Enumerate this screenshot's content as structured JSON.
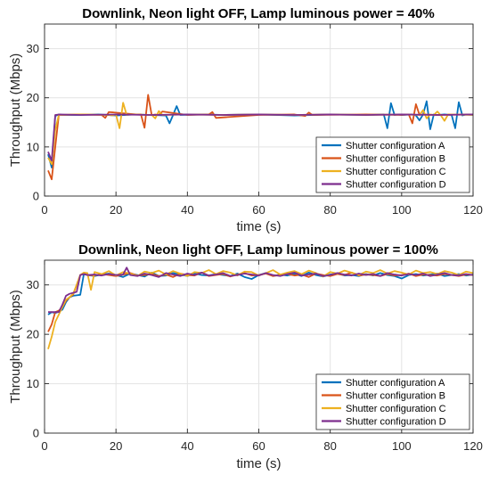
{
  "colors": {
    "A": "#0072BD",
    "B": "#D95319",
    "C": "#EDB120",
    "D": "#7E2F8E",
    "grid": "#e3e3e3",
    "axis": "#262626"
  },
  "chart_data": [
    {
      "type": "line",
      "title": "Downlink, Neon light OFF, Lamp luminous power =  40%",
      "xlabel": "time (s)",
      "ylabel": "Throughput (Mbps)",
      "xlim": [
        0,
        120
      ],
      "ylim": [
        0,
        35
      ],
      "xticks": [
        0,
        20,
        40,
        60,
        80,
        100,
        120
      ],
      "yticks": [
        0,
        10,
        20,
        30
      ],
      "grid": true,
      "legend_position": "bottom-right",
      "series": [
        {
          "name": "Shutter configuration  A",
          "color_key": "A",
          "x": [
            1,
            2,
            3,
            4,
            5,
            10,
            15,
            20,
            25,
            30,
            34,
            35,
            36,
            37,
            38,
            45,
            50,
            60,
            70,
            80,
            90,
            95,
            96,
            97,
            98,
            99,
            100,
            103,
            104,
            105,
            106,
            107,
            108,
            109,
            110,
            112,
            114,
            115,
            116,
            117,
            118,
            120
          ],
          "y": [
            8.5,
            5.8,
            16.3,
            16.6,
            16.5,
            16.5,
            16.6,
            16.4,
            16.6,
            16.5,
            16.4,
            14.8,
            16.5,
            18.3,
            16.5,
            16.6,
            16.5,
            16.6,
            16.4,
            16.6,
            16.5,
            16.6,
            13.8,
            18.9,
            16.5,
            16.6,
            16.5,
            16.6,
            16.4,
            15.4,
            16.6,
            19.3,
            13.6,
            16.6,
            16.5,
            16.6,
            16.5,
            13.8,
            19.1,
            16.4,
            16.6,
            16.5
          ]
        },
        {
          "name": "Shutter configuration  B",
          "color_key": "B",
          "x": [
            1,
            2,
            3,
            4,
            10,
            16,
            17,
            18,
            26,
            27,
            28,
            29,
            30,
            31,
            32,
            33,
            40,
            46,
            47,
            48,
            60,
            70,
            73,
            74,
            75,
            90,
            100,
            102,
            103,
            104,
            105,
            106,
            110,
            120
          ],
          "y": [
            5.2,
            3.4,
            10.0,
            16.5,
            16.6,
            16.5,
            15.9,
            17.1,
            16.6,
            16.6,
            13.9,
            20.6,
            16.5,
            16.6,
            16.5,
            17.2,
            16.5,
            16.6,
            17.1,
            15.9,
            16.5,
            16.6,
            16.3,
            17.0,
            16.5,
            16.6,
            16.5,
            16.6,
            14.8,
            18.7,
            16.5,
            16.6,
            16.5,
            16.6
          ]
        },
        {
          "name": "Shutter configuration  C",
          "color_key": "C",
          "x": [
            1,
            2,
            3,
            4,
            10,
            18,
            19,
            20,
            21,
            22,
            23,
            24,
            30,
            31,
            32,
            33,
            40,
            50,
            60,
            70,
            80,
            90,
            100,
            105,
            106,
            107,
            108,
            109,
            110,
            111,
            112,
            113,
            120
          ],
          "y": [
            7.8,
            6.5,
            13.5,
            16.5,
            16.6,
            16.5,
            16.4,
            16.6,
            13.8,
            19.0,
            16.5,
            16.6,
            16.5,
            15.8,
            17.3,
            16.5,
            16.6,
            16.5,
            16.6,
            16.5,
            16.6,
            16.5,
            16.6,
            16.5,
            17.5,
            15.8,
            16.6,
            16.5,
            17.2,
            16.4,
            15.3,
            16.6,
            16.5
          ]
        },
        {
          "name": "Shutter configuration  D",
          "color_key": "D",
          "x": [
            1,
            2,
            3,
            4,
            10,
            20,
            30,
            40,
            50,
            60,
            70,
            80,
            90,
            100,
            110,
            120
          ],
          "y": [
            9.0,
            7.2,
            16.5,
            16.6,
            16.5,
            16.6,
            16.5,
            16.6,
            16.5,
            16.6,
            16.5,
            16.6,
            16.5,
            16.6,
            16.5,
            16.6
          ]
        }
      ]
    },
    {
      "type": "line",
      "title": "Downlink, Neon light OFF, Lamp luminous power =  100%",
      "xlabel": "time (s)",
      "ylabel": "Throughput (Mbps)",
      "xlim": [
        0,
        120
      ],
      "ylim": [
        0,
        35
      ],
      "xticks": [
        0,
        20,
        40,
        60,
        80,
        100,
        120
      ],
      "yticks": [
        0,
        10,
        20,
        30
      ],
      "grid": true,
      "legend_position": "bottom-right",
      "series": [
        {
          "name": "Shutter configuration  A",
          "color_key": "A",
          "x": [
            1,
            2,
            3,
            4,
            5,
            6,
            7,
            8,
            9,
            10,
            11,
            12,
            14,
            16,
            18,
            20,
            22,
            24,
            26,
            28,
            30,
            32,
            34,
            36,
            38,
            40,
            42,
            44,
            46,
            48,
            50,
            52,
            54,
            56,
            58,
            60,
            62,
            64,
            66,
            68,
            70,
            72,
            74,
            76,
            78,
            80,
            82,
            84,
            86,
            88,
            90,
            92,
            94,
            96,
            98,
            100,
            102,
            104,
            106,
            108,
            110,
            112,
            114,
            116,
            118,
            120
          ],
          "y": [
            24.0,
            24.5,
            24.3,
            24.6,
            25.0,
            26.5,
            27.5,
            27.8,
            27.9,
            28.0,
            32.2,
            32.0,
            31.8,
            32.1,
            32.3,
            32.0,
            31.6,
            32.3,
            32.0,
            31.7,
            32.5,
            31.8,
            31.9,
            32.4,
            32.1,
            31.8,
            32.3,
            32.0,
            31.9,
            32.2,
            32.0,
            31.8,
            32.3,
            31.6,
            31.2,
            32.0,
            32.4,
            31.8,
            32.1,
            31.9,
            32.2,
            31.8,
            32.5,
            32.0,
            31.7,
            32.1,
            32.3,
            31.9,
            32.0,
            31.8,
            32.2,
            31.9,
            32.4,
            32.0,
            31.8,
            31.3,
            32.0,
            32.2,
            31.9,
            32.1,
            32.3,
            31.8,
            32.0,
            32.2,
            31.9,
            32.1
          ]
        },
        {
          "name": "Shutter configuration  B",
          "color_key": "B",
          "x": [
            1,
            2,
            3,
            4,
            5,
            6,
            7,
            8,
            9,
            10,
            11,
            12,
            14,
            16,
            18,
            20,
            22,
            24,
            26,
            28,
            30,
            32,
            34,
            36,
            38,
            40,
            42,
            44,
            46,
            48,
            50,
            52,
            54,
            56,
            58,
            60,
            62,
            64,
            66,
            68,
            70,
            72,
            74,
            76,
            78,
            80,
            82,
            84,
            86,
            88,
            90,
            92,
            94,
            96,
            98,
            100,
            102,
            104,
            106,
            108,
            110,
            112,
            114,
            116,
            118,
            120
          ],
          "y": [
            20.5,
            22.0,
            24.5,
            24.8,
            25.5,
            26.8,
            27.5,
            28.0,
            30.0,
            32.0,
            32.3,
            32.0,
            31.9,
            32.2,
            32.0,
            31.8,
            32.1,
            32.4,
            31.9,
            32.0,
            32.2,
            31.8,
            32.1,
            31.6,
            32.3,
            32.0,
            31.9,
            32.5,
            31.8,
            32.0,
            32.2,
            31.7,
            32.1,
            32.4,
            31.9,
            32.0,
            32.3,
            31.8,
            32.0,
            32.2,
            31.9,
            32.1,
            31.6,
            32.3,
            32.0,
            31.8,
            32.2,
            32.0,
            32.5,
            31.9,
            32.1,
            32.0,
            31.8,
            32.2,
            31.9,
            32.0,
            32.3,
            31.8,
            32.1,
            32.0,
            31.9,
            32.2,
            32.0,
            31.8,
            32.1,
            32.0
          ]
        },
        {
          "name": "Shutter configuration  C",
          "color_key": "C",
          "x": [
            1,
            2,
            3,
            4,
            5,
            6,
            7,
            8,
            9,
            10,
            11,
            12,
            13,
            14,
            16,
            18,
            20,
            22,
            24,
            26,
            28,
            30,
            32,
            34,
            36,
            38,
            40,
            42,
            44,
            46,
            48,
            50,
            52,
            54,
            56,
            58,
            60,
            62,
            64,
            66,
            68,
            70,
            72,
            74,
            76,
            78,
            80,
            82,
            84,
            86,
            88,
            90,
            92,
            94,
            96,
            98,
            100,
            102,
            104,
            106,
            108,
            110,
            112,
            114,
            116,
            118,
            120
          ],
          "y": [
            17.0,
            19.5,
            22.5,
            24.0,
            25.5,
            27.0,
            27.5,
            28.2,
            30.0,
            32.0,
            32.5,
            32.4,
            29.0,
            32.6,
            32.2,
            32.8,
            31.9,
            32.6,
            32.3,
            31.8,
            32.7,
            32.4,
            32.9,
            32.1,
            32.8,
            32.3,
            31.8,
            32.6,
            32.4,
            33.0,
            32.2,
            32.8,
            32.5,
            31.9,
            32.7,
            32.6,
            31.9,
            32.4,
            33.0,
            32.1,
            32.5,
            32.8,
            32.2,
            32.9,
            32.4,
            31.7,
            32.6,
            32.3,
            32.9,
            32.5,
            32.0,
            32.7,
            32.4,
            33.0,
            32.3,
            32.8,
            32.5,
            32.1,
            32.9,
            32.4,
            32.6,
            32.2,
            32.8,
            32.5,
            32.0,
            32.7,
            32.4
          ]
        },
        {
          "name": "Shutter configuration  D",
          "color_key": "D",
          "x": [
            1,
            2,
            3,
            4,
            5,
            6,
            7,
            8,
            9,
            10,
            11,
            12,
            14,
            16,
            18,
            20,
            22,
            23,
            24,
            26,
            28,
            30,
            32,
            34,
            36,
            38,
            40,
            42,
            44,
            46,
            48,
            50,
            52,
            54,
            56,
            58,
            60,
            62,
            64,
            66,
            68,
            70,
            72,
            74,
            76,
            78,
            80,
            82,
            84,
            86,
            88,
            90,
            92,
            94,
            96,
            98,
            100,
            102,
            104,
            106,
            108,
            110,
            112,
            114,
            116,
            118,
            120
          ],
          "y": [
            24.5,
            24.5,
            24.5,
            24.5,
            26.0,
            27.8,
            28.2,
            28.4,
            28.6,
            32.0,
            32.2,
            32.0,
            32.1,
            31.9,
            32.2,
            32.0,
            32.1,
            33.5,
            32.0,
            31.8,
            32.3,
            32.0,
            31.6,
            32.4,
            32.1,
            31.8,
            32.3,
            32.0,
            32.5,
            31.9,
            32.1,
            32.4,
            31.8,
            32.0,
            32.3,
            32.1,
            31.9,
            32.4,
            32.0,
            31.8,
            32.2,
            32.5,
            31.9,
            32.1,
            32.3,
            31.8,
            32.0,
            32.4,
            32.1,
            31.9,
            32.3,
            32.0,
            32.2,
            31.8,
            32.4,
            32.1,
            31.9,
            32.2,
            32.0,
            32.3,
            31.8,
            32.1,
            32.4,
            32.0,
            31.9,
            32.2,
            32.0
          ]
        }
      ]
    }
  ]
}
